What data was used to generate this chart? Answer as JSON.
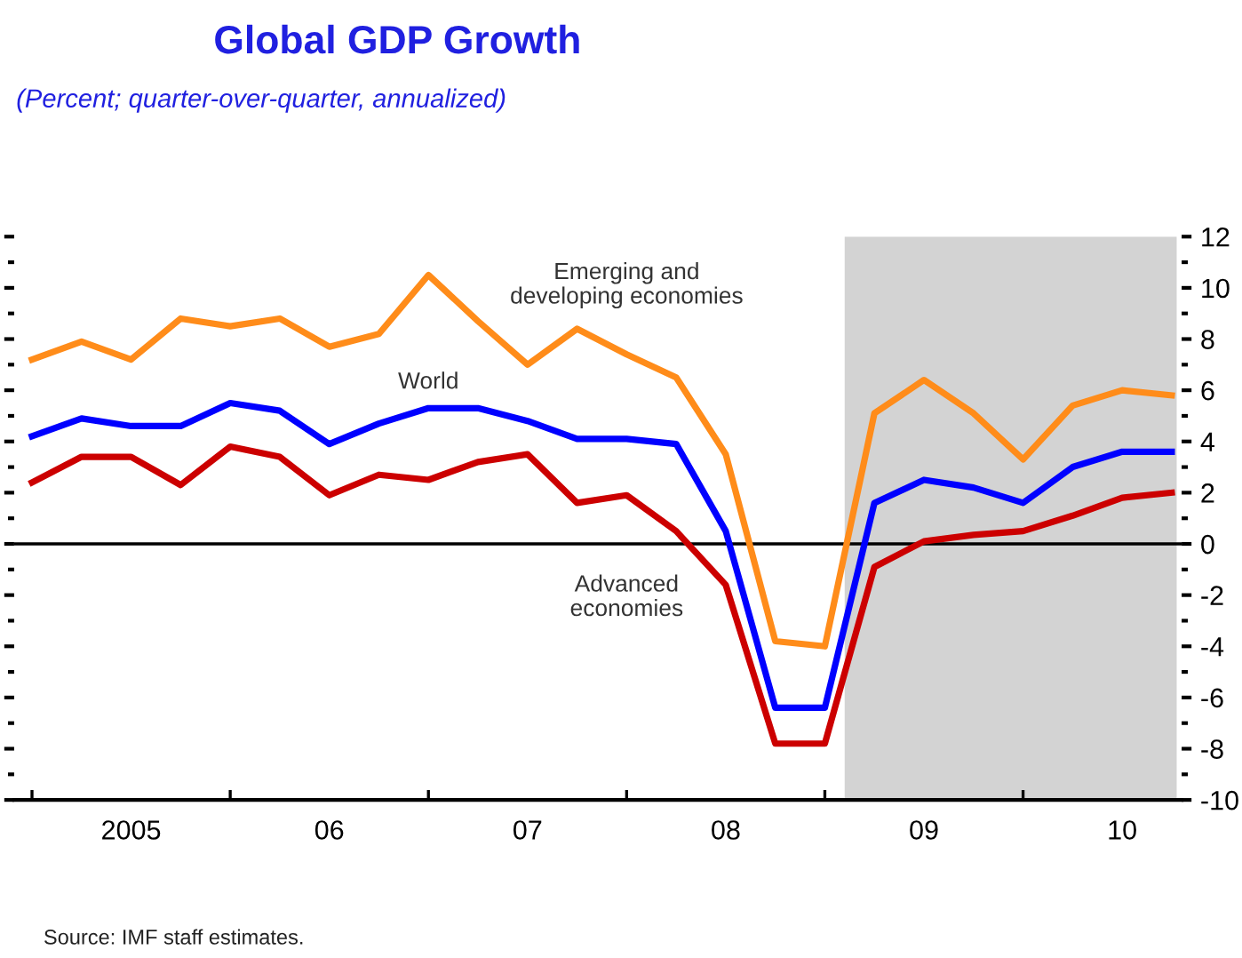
{
  "chart_data": {
    "type": "line",
    "title": "Global GDP Growth",
    "subtitle": "(Percent; quarter-over-quarter, annualized)",
    "categories": [
      null,
      null,
      "2005",
      null,
      null,
      null,
      "06",
      null,
      null,
      null,
      "07",
      null,
      null,
      null,
      "08",
      null,
      null,
      null,
      "09",
      null,
      null,
      null,
      "10",
      null
    ],
    "series": [
      {
        "name": "Emerging and developing economies",
        "color": "#ff8c1a",
        "values": [
          7.2,
          7.9,
          7.2,
          8.8,
          8.5,
          8.8,
          7.7,
          8.2,
          10.5,
          8.7,
          7.0,
          8.4,
          7.4,
          6.5,
          3.5,
          -3.8,
          -4.0,
          5.1,
          6.4,
          5.1,
          3.3,
          5.4,
          6.0,
          5.8
        ]
      },
      {
        "name": "World",
        "color": "#0000ff",
        "values": [
          4.2,
          4.9,
          4.6,
          4.6,
          5.5,
          5.2,
          3.9,
          4.7,
          5.3,
          5.3,
          4.8,
          4.1,
          4.1,
          3.9,
          0.5,
          -6.4,
          -6.4,
          1.6,
          2.5,
          2.2,
          1.6,
          3.0,
          3.6,
          3.6
        ]
      },
      {
        "name": "Advanced economies",
        "color": "#cc0000",
        "values": [
          2.4,
          3.4,
          3.4,
          2.3,
          3.8,
          3.4,
          1.9,
          2.7,
          2.5,
          3.2,
          3.5,
          1.6,
          1.9,
          0.5,
          -1.6,
          -7.8,
          -7.8,
          -0.9,
          0.1,
          0.35,
          0.5,
          1.1,
          1.8,
          2.0
        ]
      }
    ],
    "ylim": [
      -10,
      12
    ],
    "yticks": [
      -10,
      {
        "value": -9,
        "label": null
      },
      -8,
      {
        "value": -7,
        "label": null
      },
      -6,
      {
        "value": -5,
        "label": null
      },
      -4,
      {
        "value": -3,
        "label": null
      },
      -2,
      {
        "value": -1,
        "label": null
      },
      0,
      {
        "value": 1,
        "label": null
      },
      2,
      {
        "value": 3,
        "label": null
      },
      4,
      {
        "value": 5,
        "label": null
      },
      6,
      {
        "value": 7,
        "label": null
      },
      8,
      {
        "value": 9,
        "label": null
      },
      10,
      {
        "value": 11,
        "label": null
      },
      12
    ],
    "ref_lines": [
      {
        "axis": "y",
        "value": 0,
        "color": "#000000"
      }
    ],
    "annotations": [
      "Source: IMF staff estimates."
    ],
    "grid": false,
    "legend": false,
    "marker": "none",
    "line_style": "solid"
  }
}
